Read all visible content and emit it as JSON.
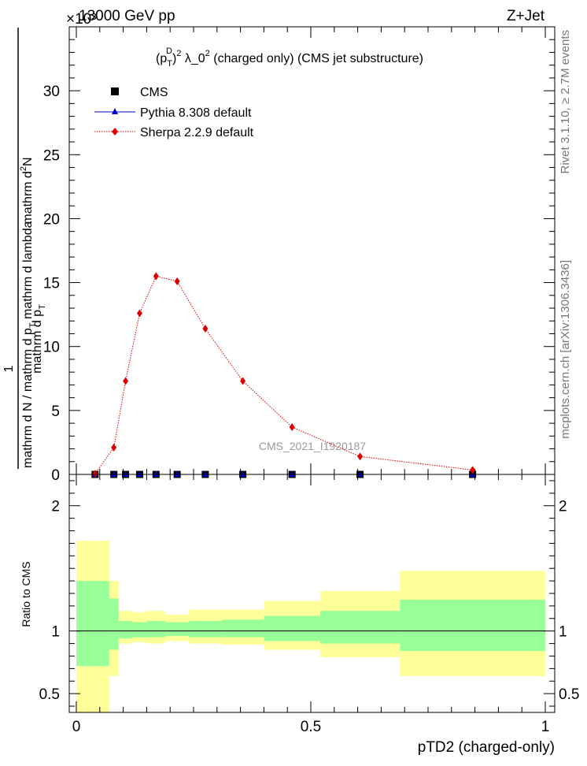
{
  "header": {
    "left": "13000 GeV pp",
    "right": "Z+Jet",
    "exponent_marker": "×10³"
  },
  "side_text": {
    "rivet": "Rivet 3.1.10, ≥ 2.7M events",
    "mcplots": "mcplots.cern.ch [arXiv:1306.3436]"
  },
  "chart_data": [
    {
      "type": "scatter",
      "panel": "main",
      "title_parts": {
        "pre": "(p",
        "sup1": "D",
        "sub1": "T",
        "post1": ")",
        "sup2": "2",
        "mid": " λ_0",
        "sup3": "2",
        "tail": " (charged only) (CMS jet substructure)"
      },
      "ylabel_parts": {
        "lead": "1",
        "denominator": "mathrm d N / mathrm d p",
        "denominator_sub": "T",
        "num_top": "mathrm d",
        "num_top_sup": "2",
        "num_top_tail": "N",
        "num_bot": "mathrm d p",
        "num_bot_sub": "T",
        "num_bot_tail": "mathrm d lambda"
      },
      "watermark": "CMS_2021_I1920187",
      "xlim": [
        0,
        1
      ],
      "ylim": [
        0,
        35
      ],
      "y_scale_note": "×10³",
      "yticks": [
        0,
        5,
        10,
        15,
        20,
        25,
        30
      ],
      "ytick_labels": [
        "0",
        "5",
        "10",
        "15",
        "20",
        "25",
        "30"
      ],
      "legend_position": "top-left",
      "legend": [
        "CMS",
        "Pythia 8.308 default",
        "Sherpa 2.2.9 default"
      ],
      "series": [
        {
          "name": "CMS",
          "marker": "square",
          "color": "#000000",
          "x": [
            0.04,
            0.08,
            0.105,
            0.135,
            0.17,
            0.215,
            0.275,
            0.355,
            0.46,
            0.605,
            0.845
          ],
          "y": [
            0,
            0,
            0,
            0,
            0,
            0,
            0,
            0,
            0,
            0,
            0
          ]
        },
        {
          "name": "Pythia 8.308 default",
          "marker": "triangle",
          "color": "#0000cc",
          "x": [
            0.04,
            0.08,
            0.105,
            0.135,
            0.17,
            0.215,
            0.275,
            0.355,
            0.46,
            0.605,
            0.845
          ],
          "y": [
            0,
            0,
            0,
            0,
            0,
            0,
            0,
            0,
            0,
            0,
            0
          ]
        },
        {
          "name": "Sherpa 2.2.9 default",
          "marker": "diamond",
          "color": "#dd0000",
          "x": [
            0.04,
            0.08,
            0.105,
            0.135,
            0.17,
            0.215,
            0.275,
            0.355,
            0.46,
            0.605,
            0.845
          ],
          "y": [
            0.05,
            2.1,
            7.3,
            12.6,
            15.5,
            15.1,
            11.4,
            7.3,
            3.7,
            1.4,
            0.35
          ]
        }
      ]
    },
    {
      "type": "area",
      "panel": "ratio",
      "ylabel": "Ratio to CMS",
      "xlabel": "pTD2 (charged-only)",
      "xlim": [
        0,
        1
      ],
      "ylim": [
        0.35,
        2.25
      ],
      "xticks": [
        0,
        0.5,
        1
      ],
      "xtick_labels": [
        "0",
        "0.5",
        "1"
      ],
      "yticks": [
        0.5,
        1,
        2
      ],
      "ytick_labels": [
        "0.5",
        "1",
        "2"
      ],
      "bins": [
        {
          "lo": 0.0,
          "hi": 0.07,
          "inner": [
            0.72,
            1.4
          ],
          "outer": [
            0.35,
            1.72
          ]
        },
        {
          "lo": 0.07,
          "hi": 0.09,
          "inner": [
            0.85,
            1.26
          ],
          "outer": [
            0.64,
            1.4
          ]
        },
        {
          "lo": 0.09,
          "hi": 0.12,
          "inner": [
            0.94,
            1.08
          ],
          "outer": [
            0.9,
            1.16
          ]
        },
        {
          "lo": 0.12,
          "hi": 0.15,
          "inner": [
            0.95,
            1.07
          ],
          "outer": [
            0.91,
            1.15
          ]
        },
        {
          "lo": 0.15,
          "hi": 0.19,
          "inner": [
            0.95,
            1.08
          ],
          "outer": [
            0.9,
            1.16
          ]
        },
        {
          "lo": 0.19,
          "hi": 0.24,
          "inner": [
            0.96,
            1.07
          ],
          "outer": [
            0.92,
            1.13
          ]
        },
        {
          "lo": 0.24,
          "hi": 0.31,
          "inner": [
            0.95,
            1.08
          ],
          "outer": [
            0.9,
            1.17
          ]
        },
        {
          "lo": 0.31,
          "hi": 0.4,
          "inner": [
            0.95,
            1.09
          ],
          "outer": [
            0.89,
            1.17
          ]
        },
        {
          "lo": 0.4,
          "hi": 0.52,
          "inner": [
            0.92,
            1.12
          ],
          "outer": [
            0.85,
            1.24
          ]
        },
        {
          "lo": 0.52,
          "hi": 0.69,
          "inner": [
            0.9,
            1.16
          ],
          "outer": [
            0.79,
            1.32
          ]
        },
        {
          "lo": 0.69,
          "hi": 1.0,
          "inner": [
            0.84,
            1.25
          ],
          "outer": [
            0.64,
            1.48
          ]
        }
      ],
      "inner_color": "#99ff99",
      "outer_color": "#ffff99",
      "reference_line": 1
    }
  ]
}
